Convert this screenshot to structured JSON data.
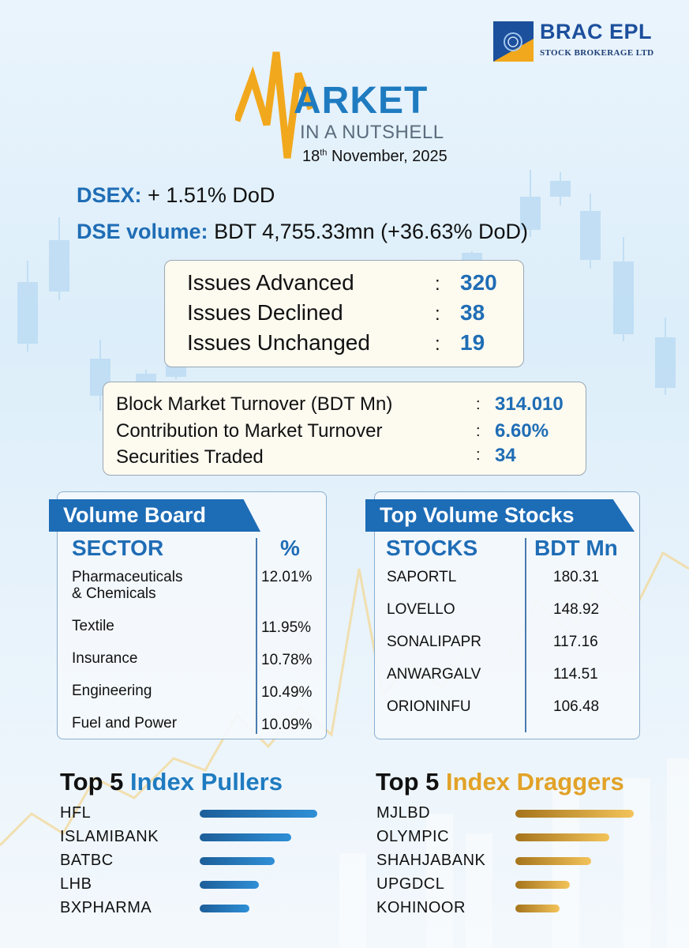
{
  "logo": {
    "name": "BRAC EPL",
    "subtitle": "STOCK BROKERAGE LTD"
  },
  "title": {
    "word": "ARKET",
    "subtitle": "IN A NUTSHELL",
    "date_day": "18",
    "date_suffix": "th",
    "date_rest": "November, 2025"
  },
  "summary": {
    "dsex_label": "DSEX:",
    "dsex_value": "+ 1.51% DoD",
    "volume_label": "DSE volume:",
    "volume_value": "BDT 4,755.33mn (+36.63% DoD)"
  },
  "issues": [
    {
      "label": "Issues Advanced",
      "value": "320"
    },
    {
      "label": "Issues Declined",
      "value": "38"
    },
    {
      "label": "Issues Unchanged",
      "value": "19"
    }
  ],
  "block": [
    {
      "label": "Block Market Turnover (BDT Mn)",
      "value": "314.010"
    },
    {
      "label": "Contribution to Market Turnover",
      "value": "6.60%"
    },
    {
      "label": "Securities Traded",
      "value": "34"
    }
  ],
  "volume_board": {
    "title": "Volume Board",
    "col1": "SECTOR",
    "col2": "%",
    "rows": [
      {
        "sector_line1": "Pharmaceuticals",
        "sector_line2": "& Chemicals",
        "pct": "12.01%"
      },
      {
        "sector_line1": "Textile",
        "sector_line2": "",
        "pct": "11.95%"
      },
      {
        "sector_line1": "Insurance",
        "sector_line2": "",
        "pct": "10.78%"
      },
      {
        "sector_line1": "Engineering",
        "sector_line2": "",
        "pct": "10.49%"
      },
      {
        "sector_line1": "Fuel and Power",
        "sector_line2": "",
        "pct": "10.09%"
      }
    ]
  },
  "top_volume": {
    "title": "Top Volume Stocks",
    "col1": "STOCKS",
    "col2": "BDT Mn",
    "rows": [
      {
        "stock": "SAPORTL",
        "value": "180.31"
      },
      {
        "stock": "LOVELLO",
        "value": "148.92"
      },
      {
        "stock": "SONALIPAPR",
        "value": "117.16"
      },
      {
        "stock": "ANWARGALV",
        "value": "114.51"
      },
      {
        "stock": "ORIONINFU",
        "value": "106.48"
      }
    ]
  },
  "pullers": {
    "title_a": "Top 5",
    "title_b": "Index Pullers",
    "items": [
      {
        "name": "HFL",
        "level": 1.0
      },
      {
        "name": "ISLAMIBANK",
        "level": 0.78
      },
      {
        "name": "BATBC",
        "level": 0.64
      },
      {
        "name": "LHB",
        "level": 0.5
      },
      {
        "name": "BXPHARMA",
        "level": 0.42
      }
    ]
  },
  "draggers": {
    "title_a": "Top 5",
    "title_b": "Index Draggers",
    "items": [
      {
        "name": "MJLBD",
        "level": 1.0
      },
      {
        "name": "OLYMPIC",
        "level": 0.79
      },
      {
        "name": "SHAHJABANK",
        "level": 0.64
      },
      {
        "name": "UPGDCL",
        "level": 0.46
      },
      {
        "name": "KOHINOOR",
        "level": 0.37
      }
    ]
  },
  "colors": {
    "brand_blue": "#1f6db5",
    "accent_gold": "#e2a227",
    "tab_blue": "#1d6cb6"
  }
}
